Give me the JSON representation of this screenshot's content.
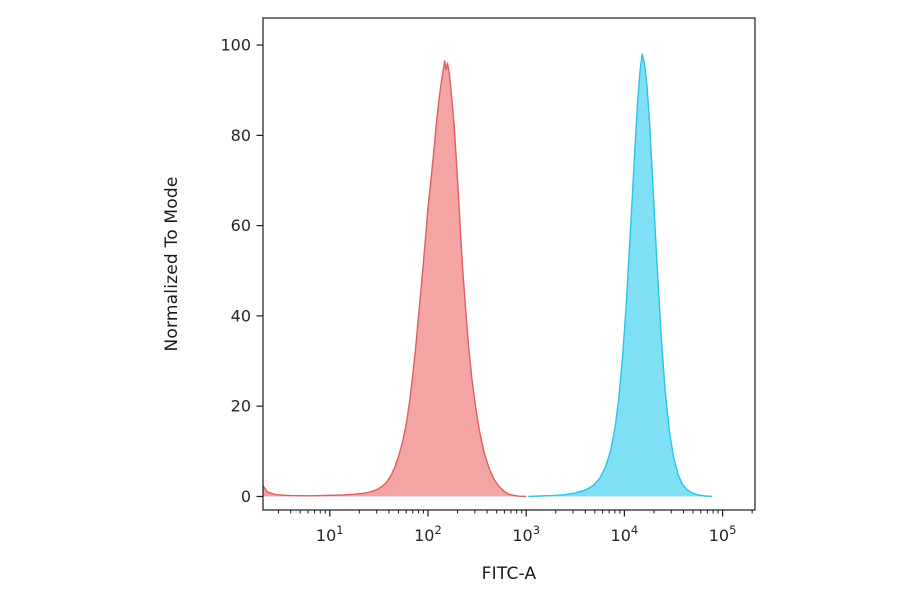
{
  "figure": {
    "background": "#ffffff"
  },
  "chart_data": {
    "type": "area",
    "title": "",
    "xlabel": "FITC-A",
    "ylabel": "Normalized To Mode",
    "x_scale": "log",
    "grid": "off",
    "legend": "none",
    "axis_color": "#1a1a1a",
    "tick_label_color": "#262626",
    "x_log_min": 0.32,
    "x_log_max": 5.33,
    "y_min": -3,
    "y_max": 106,
    "x_ticks": [
      {
        "value": 10,
        "base": "10",
        "exp": "1"
      },
      {
        "value": 100,
        "base": "10",
        "exp": "2"
      },
      {
        "value": 1000,
        "base": "10",
        "exp": "3"
      },
      {
        "value": 10000,
        "base": "10",
        "exp": "4"
      },
      {
        "value": 100000,
        "base": "10",
        "exp": "5"
      }
    ],
    "y_ticks": [
      {
        "value": 0,
        "label": "0"
      },
      {
        "value": 20,
        "label": "20"
      },
      {
        "value": 40,
        "label": "40"
      },
      {
        "value": 60,
        "label": "60"
      },
      {
        "value": 80,
        "label": "80"
      },
      {
        "value": 100,
        "label": "100"
      }
    ],
    "series": [
      {
        "name": "red-control-peak",
        "fill": "#f28b8b",
        "fill_opacity": 0.78,
        "stroke": "#de5f5f",
        "peak_x": 148,
        "peak_y": 96.5,
        "points": [
          [
            2.08,
            2.5
          ],
          [
            2.3,
            1.0
          ],
          [
            2.8,
            0.4
          ],
          [
            4,
            0.2
          ],
          [
            6,
            0.15
          ],
          [
            8,
            0.2
          ],
          [
            10,
            0.25
          ],
          [
            14,
            0.35
          ],
          [
            18,
            0.5
          ],
          [
            22,
            0.7
          ],
          [
            26,
            1.0
          ],
          [
            30,
            1.5
          ],
          [
            34,
            2.2
          ],
          [
            38,
            3.2
          ],
          [
            42,
            4.6
          ],
          [
            46,
            6.5
          ],
          [
            50,
            8.8
          ],
          [
            55,
            12
          ],
          [
            60,
            16
          ],
          [
            65,
            21
          ],
          [
            70,
            27
          ],
          [
            75,
            33
          ],
          [
            80,
            40
          ],
          [
            85,
            46
          ],
          [
            90,
            52
          ],
          [
            95,
            58
          ],
          [
            100,
            64
          ],
          [
            107,
            70
          ],
          [
            114,
            76
          ],
          [
            121,
            82
          ],
          [
            128,
            87
          ],
          [
            135,
            91
          ],
          [
            142,
            94
          ],
          [
            148,
            96.5
          ],
          [
            153,
            94.5
          ],
          [
            158,
            96
          ],
          [
            164,
            94
          ],
          [
            170,
            91
          ],
          [
            177,
            87
          ],
          [
            185,
            82
          ],
          [
            194,
            75
          ],
          [
            204,
            67
          ],
          [
            215,
            58
          ],
          [
            228,
            49
          ],
          [
            243,
            41
          ],
          [
            260,
            33
          ],
          [
            280,
            26
          ],
          [
            305,
            20
          ],
          [
            335,
            14.5
          ],
          [
            370,
            10
          ],
          [
            415,
            6.5
          ],
          [
            465,
            4
          ],
          [
            525,
            2.3
          ],
          [
            590,
            1.2
          ],
          [
            665,
            0.5
          ],
          [
            750,
            0.2
          ],
          [
            850,
            0.05
          ],
          [
            1000,
            0
          ]
        ]
      },
      {
        "name": "cyan-stained-peak",
        "fill": "#68d9f3",
        "fill_opacity": 0.85,
        "stroke": "#2cc3e6",
        "peak_x": 15200,
        "peak_y": 98,
        "points": [
          [
            1050,
            0
          ],
          [
            1400,
            0.1
          ],
          [
            1900,
            0.2
          ],
          [
            2500,
            0.4
          ],
          [
            3200,
            0.8
          ],
          [
            4000,
            1.4
          ],
          [
            4800,
            2.4
          ],
          [
            5600,
            4
          ],
          [
            6400,
            6.5
          ],
          [
            7200,
            10
          ],
          [
            8000,
            15
          ],
          [
            8800,
            22
          ],
          [
            9600,
            31
          ],
          [
            10400,
            42
          ],
          [
            11200,
            54
          ],
          [
            12000,
            66
          ],
          [
            12800,
            77
          ],
          [
            13600,
            87
          ],
          [
            14400,
            94
          ],
          [
            15200,
            98
          ],
          [
            16000,
            96
          ],
          [
            17000,
            91
          ],
          [
            18000,
            83
          ],
          [
            19200,
            72
          ],
          [
            20600,
            59
          ],
          [
            22200,
            46
          ],
          [
            24000,
            34
          ],
          [
            26000,
            23.5
          ],
          [
            28500,
            15
          ],
          [
            31500,
            9
          ],
          [
            35000,
            5
          ],
          [
            39000,
            2.7
          ],
          [
            44000,
            1.4
          ],
          [
            50000,
            0.7
          ],
          [
            57000,
            0.3
          ],
          [
            66000,
            0.1
          ],
          [
            78000,
            0
          ]
        ]
      }
    ]
  }
}
